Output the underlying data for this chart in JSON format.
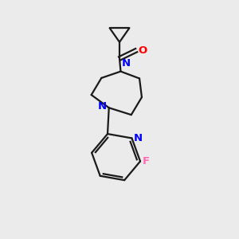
{
  "background_color": "#ebebeb",
  "bond_color": "#1a1a1a",
  "nitrogen_color": "#0000ff",
  "oxygen_color": "#ff0000",
  "fluorine_color": "#ff69b4",
  "line_width": 1.6,
  "figsize": [
    3.0,
    3.0
  ],
  "dpi": 100,
  "xlim": [
    0,
    10
  ],
  "ylim": [
    0,
    10
  ]
}
